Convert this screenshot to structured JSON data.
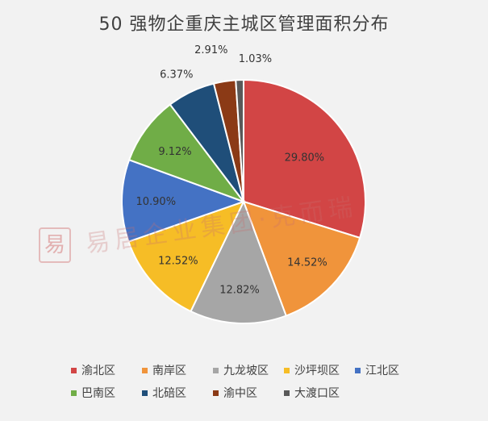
{
  "chart_data": {
    "type": "pie",
    "title": "50 强物企重庆主城区管理面积分布",
    "categories": [
      "渝北区",
      "南岸区",
      "九龙坡区",
      "沙坪坝区",
      "江北区",
      "巴南区",
      "北碚区",
      "渝中区",
      "大渡口区"
    ],
    "values": [
      29.8,
      14.52,
      12.82,
      12.52,
      10.9,
      9.12,
      6.37,
      2.91,
      1.03
    ],
    "value_labels": [
      "29.80%",
      "14.52%",
      "12.82%",
      "12.52%",
      "10.90%",
      "9.12%",
      "6.37%",
      "2.91%",
      "1.03%"
    ],
    "colors": [
      "#d24545",
      "#f0943b",
      "#a6a6a6",
      "#f6bd26",
      "#4472c4",
      "#70ad47",
      "#1f4e79",
      "#8b3a16",
      "#595959"
    ],
    "legend_position": "bottom",
    "start_angle": "12 o'clock",
    "direction": "clockwise"
  },
  "watermark": {
    "seal_char": "易",
    "text": "易居企业集团·克而瑞"
  }
}
